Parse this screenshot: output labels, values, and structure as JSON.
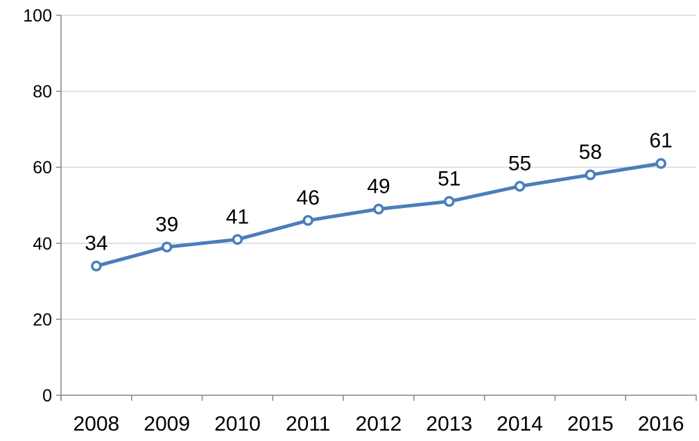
{
  "chart_data": {
    "type": "line",
    "title": "",
    "xlabel": "",
    "ylabel": "",
    "categories": [
      "2008",
      "2009",
      "2010",
      "2011",
      "2012",
      "2013",
      "2014",
      "2015",
      "2016"
    ],
    "series": [
      {
        "values": [
          34,
          39,
          41,
          46,
          49,
          51,
          55,
          58,
          61
        ],
        "data_labels": [
          "34",
          "39",
          "41",
          "46",
          "49",
          "51",
          "55",
          "58",
          "61"
        ],
        "color": "#4a7ebb"
      }
    ],
    "ylim": [
      0,
      100
    ],
    "yticks": [
      0,
      20,
      40,
      60,
      80,
      100
    ],
    "grid": true,
    "legend": "none",
    "colors": {
      "line": "#4a7ebb",
      "marker_fill": "#ffffff",
      "grid": "#d9d9d9",
      "axis": "#868686"
    }
  }
}
